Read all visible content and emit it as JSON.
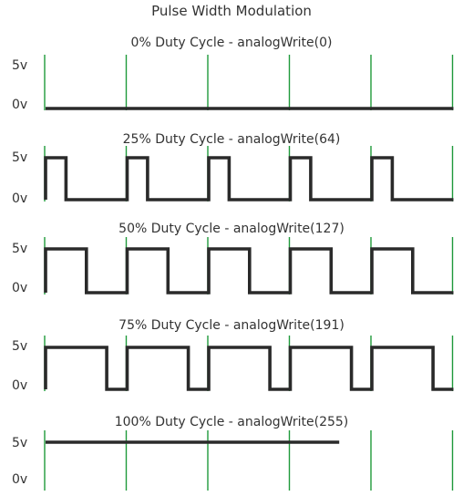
{
  "title": "Pulse Width Modulation",
  "y_labels": {
    "high": "5v",
    "low": "0v"
  },
  "colors": {
    "signal": "#2a2a2a",
    "gridline": "#1f9a3a",
    "background": "#ffffff"
  },
  "chart_data": {
    "type": "line",
    "title": "Pulse Width Modulation",
    "cycles_shown": 5,
    "x_marker_positions_cycles": [
      0,
      1,
      2,
      3,
      4,
      5
    ],
    "y_levels": [
      "0v",
      "5v"
    ],
    "panels": [
      {
        "label": "0% Duty Cycle - analogWrite(0)",
        "duty_percent": 0,
        "analog_write": 0
      },
      {
        "label": "25% Duty Cycle - analogWrite(64)",
        "duty_percent": 25,
        "analog_write": 64
      },
      {
        "label": "50% Duty Cycle - analogWrite(127)",
        "duty_percent": 50,
        "analog_write": 127
      },
      {
        "label": "75% Duty Cycle - analogWrite(191)",
        "duty_percent": 75,
        "analog_write": 191
      },
      {
        "label": "100% Duty Cycle - analogWrite(255)",
        "duty_percent": 100,
        "analog_write": 255
      }
    ]
  }
}
